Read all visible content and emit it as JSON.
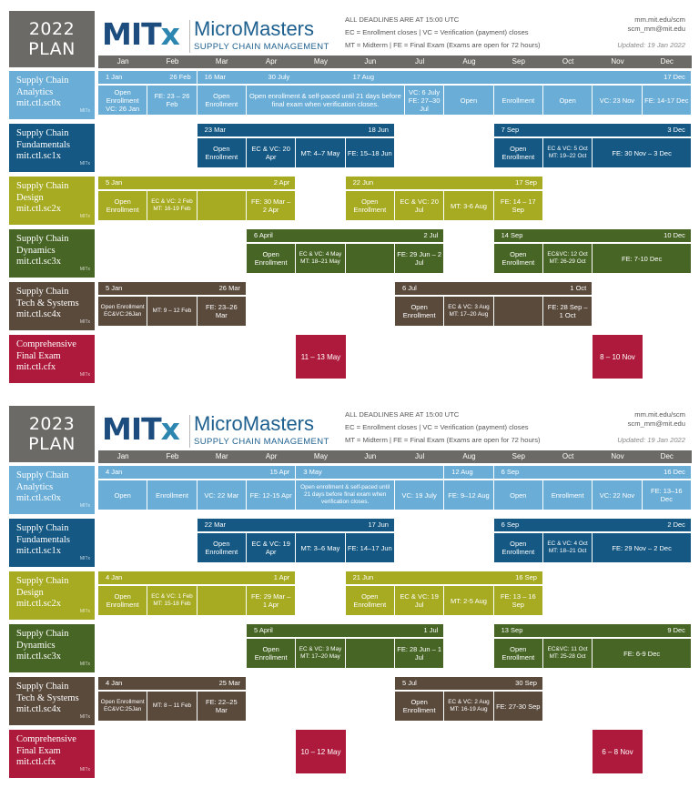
{
  "months": [
    "Jan",
    "Feb",
    "Mar",
    "Apr",
    "May",
    "Jun",
    "Jul",
    "Aug",
    "Sep",
    "Oct",
    "Nov",
    "Dec"
  ],
  "colors": {
    "sc0x": "#6aaed8",
    "sc1x": "#145883",
    "sc2x": "#a7ab22",
    "sc3x": "#476525",
    "sc4x": "#5a4a3c",
    "cfx": "#ad1a3c",
    "plan": "#6c6a66"
  },
  "brand": {
    "mitx_a": "MIT",
    "mitx_b": "x",
    "micromasters": "MicroMasters",
    "subtitle": "SUPPLY CHAIN MANAGEMENT"
  },
  "contact": {
    "url": "mm.mit.edu/scm",
    "email": "scm_mm@mit.edu"
  },
  "plans": [
    {
      "plan_a": "2022",
      "plan_b": "PLAN",
      "note_line1": "ALL DEADLINES ARE AT 15:00 UTC",
      "note_line2": "EC = Enrollment closes | VC = Verification (payment) closes",
      "note_line3": "MT = Midterm | FE = Final Exam (Exams are open for 72 hours)",
      "updated": "Updated: 19 Jan 2022",
      "courses": [
        {
          "key": "sc0x",
          "name1": "Supply Chain",
          "name2": "Analytics",
          "code": "mit.ctl.sc0x",
          "bars": [
            [
              0,
              2,
              "1 Jan",
              "26 Feb"
            ],
            [
              2,
              12,
              "16 Mar",
              ""
            ]
          ],
          "brk": [
            [
              3,
              4,
              "30 July"
            ],
            [
              5,
              12,
              "17 Aug"
            ],
            [
              7,
              0,
              ""
            ],
            [
              8,
              12,
              "17 Dec"
            ]
          ],
          "cells": [
            [
              0,
              1,
              "Open Enrollment VC: 26 Jan",
              0
            ],
            [
              1,
              2,
              "FE: 23 – 26 Feb",
              0
            ],
            [
              2,
              3,
              "Open Enrollment",
              0
            ],
            [
              3,
              6.2,
              "Open enrollment & self-paced until 21 days before final exam when verification closes.",
              0
            ],
            [
              6.2,
              7,
              "VC: 6 July FE: 27–30 Jul",
              0
            ],
            [
              7,
              8,
              "Open",
              0
            ],
            [
              8,
              9,
              "Enrollment",
              0
            ],
            [
              9,
              10,
              "Open",
              0
            ],
            [
              10,
              11,
              "VC: 23 Nov",
              0
            ],
            [
              11,
              12,
              "FE: 14-17 Dec",
              0
            ]
          ]
        },
        {
          "key": "sc1x",
          "name1": "Supply Chain",
          "name2": "Fundamentals",
          "code": "mit.ctl.sc1x",
          "bars": [
            [
              2,
              6,
              "23 Mar",
              "18 Jun"
            ],
            [
              8,
              12,
              "7 Sep",
              "3 Dec"
            ]
          ],
          "cells": [
            [
              2,
              3,
              "Open Enrollment",
              0
            ],
            [
              3,
              4,
              "EC & VC: 20 Apr",
              0
            ],
            [
              4,
              5,
              "MT: 4–7 May",
              0
            ],
            [
              5,
              6,
              "FE: 15–18 Jun",
              0
            ],
            [
              8,
              9,
              "Open Enrollment",
              0
            ],
            [
              9,
              10,
              "EC & VC: 5 Oct MT: 19–22 Oct",
              1
            ],
            [
              10,
              12,
              "FE: 30 Nov – 3 Dec",
              0
            ]
          ]
        },
        {
          "key": "sc2x",
          "name1": "Supply Chain",
          "name2": "Design",
          "code": "mit.ctl.sc2x",
          "bars": [
            [
              0,
              4,
              "5 Jan",
              "2 Apr"
            ],
            [
              5,
              9,
              "22 Jun",
              "17 Sep"
            ]
          ],
          "cells": [
            [
              0,
              1,
              "Open Enrollment",
              0
            ],
            [
              1,
              2,
              "EC & VC: 2 Feb MT: 16-19 Feb",
              1
            ],
            [
              2,
              3,
              "",
              0
            ],
            [
              3,
              4,
              "FE: 30 Mar – 2 Apr",
              0
            ],
            [
              5,
              6,
              "Open Enrollment",
              0
            ],
            [
              6,
              7,
              "EC & VC: 20 Jul",
              0
            ],
            [
              7,
              8,
              "MT: 3-6 Aug",
              0
            ],
            [
              8,
              9,
              "FE: 14 – 17 Sep",
              0
            ]
          ]
        },
        {
          "key": "sc3x",
          "name1": "Supply Chain",
          "name2": "Dynamics",
          "code": "mit.ctl.sc3x",
          "bars": [
            [
              3,
              7,
              "6 April",
              "2 Jul"
            ],
            [
              8,
              12,
              "14 Sep",
              "10 Dec"
            ]
          ],
          "cells": [
            [
              3,
              4,
              "Open Enrollment",
              0
            ],
            [
              4,
              5,
              "EC & VC: 4 May MT: 18–21 May",
              1
            ],
            [
              5,
              6,
              "",
              0
            ],
            [
              6,
              7,
              "FE: 29 Jun – 2 Jul",
              0
            ],
            [
              8,
              9,
              "Open Enrollment",
              0
            ],
            [
              9,
              10,
              "EC&VC: 12 Oct MT: 26-29 Oct",
              1
            ],
            [
              10,
              12,
              "FE: 7-10 Dec",
              0
            ]
          ]
        },
        {
          "key": "sc4x",
          "name1": "Supply Chain",
          "name2": "Tech & Systems",
          "code": "mit.ctl.sc4x",
          "bars": [
            [
              0,
              3,
              "5 Jan",
              "26 Mar"
            ],
            [
              6,
              10,
              "6 Jul",
              "1 Oct"
            ]
          ],
          "cells": [
            [
              0,
              1,
              "Open Enrollment EC&VC:26Jan",
              1
            ],
            [
              1,
              2,
              "MT: 9 – 12 Feb",
              1
            ],
            [
              2,
              3,
              "FE: 23–26 Mar",
              0
            ],
            [
              6,
              7,
              "Open Enrollment",
              0
            ],
            [
              7,
              8,
              "EC & VC: 3 Aug MT: 17–20 Aug",
              1
            ],
            [
              8,
              9,
              "",
              0
            ],
            [
              9,
              10,
              "FE: 28 Sep – 1 Oct",
              0
            ]
          ]
        },
        {
          "key": "cfx",
          "name1": "Comprehensive",
          "name2": "Final Exam",
          "code": "mit.ctl.cfx",
          "exams": [
            [
              4,
              "11 – 13 May"
            ],
            [
              10,
              "8 – 10 Nov"
            ]
          ]
        }
      ]
    },
    {
      "plan_a": "2023",
      "plan_b": "PLAN",
      "note_line1": "ALL DEADLINES ARE AT 15:00 UTC",
      "note_line2": "EC = Enrollment closes | VC = Verification (payment) closes",
      "note_line3": "MT = Midterm | FE = Final Exam (Exams are open for 72 hours)",
      "updated": "Updated: 19 Jan 2022",
      "courses": [
        {
          "key": "sc0x",
          "name1": "Supply Chain",
          "name2": "Analytics",
          "code": "mit.ctl.sc0x",
          "bars": [
            [
              0,
              4,
              "4 Jan",
              "15 Apr"
            ],
            [
              4,
              7,
              "3 May",
              ""
            ],
            [
              7,
              8,
              "12 Aug",
              ""
            ],
            [
              8,
              12,
              "6 Sep",
              "16 Dec"
            ]
          ],
          "cells": [
            [
              0,
              1,
              "Open",
              0
            ],
            [
              1,
              2,
              "Enrollment",
              0
            ],
            [
              2,
              3,
              "VC: 22 Mar",
              0
            ],
            [
              3,
              4,
              "FE: 12-15 Apr",
              0
            ],
            [
              4,
              6,
              "Open enrollment & self-paced until 21 days before final exam when verification closes.",
              1
            ],
            [
              6,
              7,
              "VC: 19 July",
              0
            ],
            [
              7,
              8,
              "FE: 9–12 Aug",
              0
            ],
            [
              8,
              9,
              "Open",
              0
            ],
            [
              9,
              10,
              "Enrollment",
              0
            ],
            [
              10,
              11,
              "VC: 22 Nov",
              0
            ],
            [
              11,
              12,
              "FE: 13–16 Dec",
              0
            ]
          ]
        },
        {
          "key": "sc1x",
          "name1": "Supply Chain",
          "name2": "Fundamentals",
          "code": "mit.ctl.sc1x",
          "bars": [
            [
              2,
              6,
              "22 Mar",
              "17 Jun"
            ],
            [
              8,
              12,
              "6 Sep",
              "2 Dec"
            ]
          ],
          "cells": [
            [
              2,
              3,
              "Open Enrollment",
              0
            ],
            [
              3,
              4,
              "EC & VC: 19 Apr",
              0
            ],
            [
              4,
              5,
              "MT: 3–6 May",
              0
            ],
            [
              5,
              6,
              "FE: 14–17 Jun",
              0
            ],
            [
              8,
              9,
              "Open Enrollment",
              0
            ],
            [
              9,
              10,
              "EC & VC: 4 Oct MT: 18–21 Oct",
              1
            ],
            [
              10,
              12,
              "FE: 29 Nov – 2 Dec",
              0
            ]
          ]
        },
        {
          "key": "sc2x",
          "name1": "Supply Chain",
          "name2": "Design",
          "code": "mit.ctl.sc2x",
          "bars": [
            [
              0,
              4,
              "4 Jan",
              "1 Apr"
            ],
            [
              5,
              9,
              "21 Jun",
              "16 Sep"
            ]
          ],
          "cells": [
            [
              0,
              1,
              "Open Enrollment",
              0
            ],
            [
              1,
              2,
              "EC & VC: 1 Feb MT: 15-18 Feb",
              1
            ],
            [
              2,
              3,
              "",
              0
            ],
            [
              3,
              4,
              "FE: 29 Mar – 1 Apr",
              0
            ],
            [
              5,
              6,
              "Open Enrollment",
              0
            ],
            [
              6,
              7,
              "EC & VC: 19 Jul",
              0
            ],
            [
              7,
              8,
              "MT: 2-5 Aug",
              0
            ],
            [
              8,
              9,
              "FE: 13 – 16 Sep",
              0
            ]
          ]
        },
        {
          "key": "sc3x",
          "name1": "Supply Chain",
          "name2": "Dynamics",
          "code": "mit.ctl.sc3x",
          "bars": [
            [
              3,
              7,
              "5 April",
              "1 Jul"
            ],
            [
              8,
              12,
              "13 Sep",
              "9 Dec"
            ]
          ],
          "cells": [
            [
              3,
              4,
              "Open Enrollment",
              0
            ],
            [
              4,
              5,
              "EC & VC: 3 May MT: 17–20 May",
              1
            ],
            [
              5,
              6,
              "",
              0
            ],
            [
              6,
              7,
              "FE: 28 Jun – 1 Jul",
              0
            ],
            [
              8,
              9,
              "Open Enrollment",
              0
            ],
            [
              9,
              10,
              "EC&VC: 11 Oct MT: 25-28 Oct",
              1
            ],
            [
              10,
              12,
              "FE: 6-9 Dec",
              0
            ]
          ]
        },
        {
          "key": "sc4x",
          "name1": "Supply Chain",
          "name2": "Tech & Systems",
          "code": "mit.ctl.sc4x",
          "bars": [
            [
              0,
              3,
              "4 Jan",
              "25 Mar"
            ],
            [
              6,
              9,
              "5 Jul",
              "30 Sep"
            ]
          ],
          "cells": [
            [
              0,
              1,
              "Open Enrollment EC&VC:25Jan",
              1
            ],
            [
              1,
              2,
              "MT: 8 – 11 Feb",
              1
            ],
            [
              2,
              3,
              "FE: 22–25 Mar",
              0
            ],
            [
              6,
              7,
              "Open Enrollment",
              0
            ],
            [
              7,
              8,
              "EC & VC: 2 Aug MT: 16-19 Aug",
              1
            ],
            [
              8,
              9,
              "FE: 27-30 Sep",
              0
            ]
          ]
        },
        {
          "key": "cfx",
          "name1": "Comprehensive",
          "name2": "Final Exam",
          "code": "mit.ctl.cfx",
          "exams": [
            [
              4,
              "10 – 12 May"
            ],
            [
              10,
              "6 – 8 Nov"
            ]
          ]
        }
      ]
    }
  ]
}
